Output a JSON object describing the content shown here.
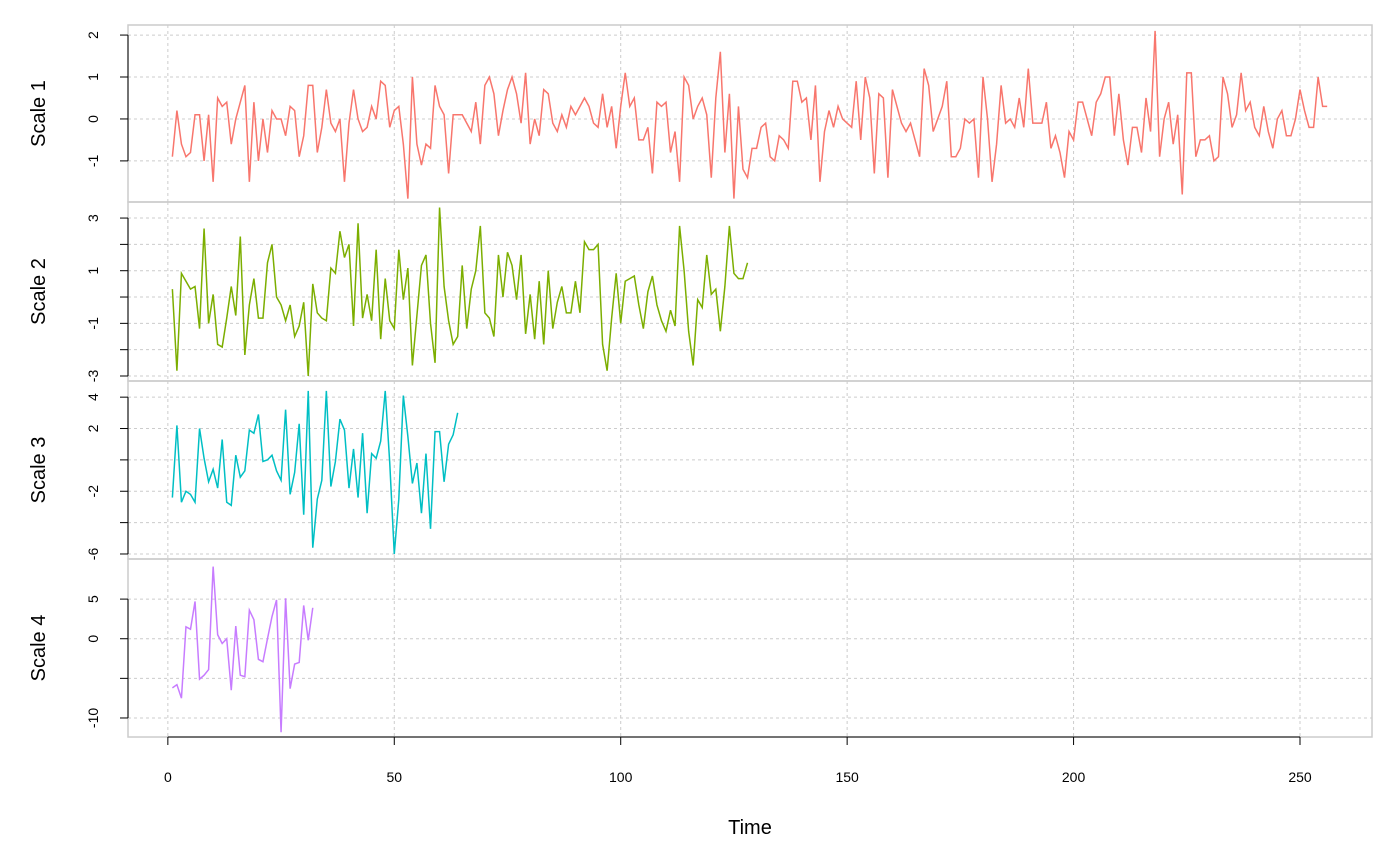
{
  "chart_data": [
    {
      "type": "line",
      "ylabel": "Scale 1",
      "xlim": [
        -8.8,
        265.9
      ],
      "ylim": [
        -1.98,
        2.24
      ],
      "yticks": [
        -1,
        0,
        1,
        2
      ],
      "grid": true,
      "x": [
        1,
        2,
        3,
        4,
        5,
        6,
        7,
        8,
        9,
        10,
        11,
        12,
        13,
        14,
        15,
        16,
        17,
        18,
        19,
        20,
        21,
        22,
        23,
        24,
        25,
        26,
        27,
        28,
        29,
        30,
        31,
        32,
        33,
        34,
        35,
        36,
        37,
        38,
        39,
        40,
        41,
        42,
        43,
        44,
        45,
        46,
        47,
        48,
        49,
        50,
        51,
        52,
        53,
        54,
        55,
        56,
        57,
        58,
        59,
        60,
        61,
        62,
        63,
        64,
        65,
        66,
        67,
        68,
        69,
        70,
        71,
        72,
        73,
        74,
        75,
        76,
        77,
        78,
        79,
        80,
        81,
        82,
        83,
        84,
        85,
        86,
        87,
        88,
        89,
        90,
        91,
        92,
        93,
        94,
        95,
        96,
        97,
        98,
        99,
        100,
        101,
        102,
        103,
        104,
        105,
        106,
        107,
        108,
        109,
        110,
        111,
        112,
        113,
        114,
        115,
        116,
        117,
        118,
        119,
        120,
        121,
        122,
        123,
        124,
        125,
        126,
        127,
        128,
        129,
        130,
        131,
        132,
        133,
        134,
        135,
        136,
        137,
        138,
        139,
        140,
        141,
        142,
        143,
        144,
        145,
        146,
        147,
        148,
        149,
        150,
        151,
        152,
        153,
        154,
        155,
        156,
        157,
        158,
        159,
        160,
        161,
        162,
        163,
        164,
        165,
        166,
        167,
        168,
        169,
        170,
        171,
        172,
        173,
        174,
        175,
        176,
        177,
        178,
        179,
        180,
        181,
        182,
        183,
        184,
        185,
        186,
        187,
        188,
        189,
        190,
        191,
        192,
        193,
        194,
        195,
        196,
        197,
        198,
        199,
        200,
        201,
        202,
        203,
        204,
        205,
        206,
        207,
        208,
        209,
        210,
        211,
        212,
        213,
        214,
        215,
        216,
        217,
        218,
        219,
        220,
        221,
        222,
        223,
        224,
        225,
        226,
        227,
        228,
        229,
        230,
        231,
        232,
        233,
        234,
        235,
        236,
        237,
        238,
        239,
        240,
        241,
        242,
        243,
        244,
        245,
        246,
        247,
        248,
        249,
        250,
        251,
        252,
        253,
        254,
        255,
        256
      ],
      "series": [
        {
          "color": "#F8766D",
          "values": [
            -0.9,
            0.2,
            -0.6,
            -0.9,
            -0.8,
            0.1,
            0.1,
            -1.0,
            0.1,
            -1.5,
            0.5,
            0.3,
            0.4,
            -0.6,
            0.0,
            0.4,
            0.8,
            -1.5,
            0.4,
            -1.0,
            0.0,
            -0.8,
            0.2,
            0.0,
            0.0,
            -0.4,
            0.3,
            0.2,
            -0.9,
            -0.4,
            0.8,
            0.8,
            -0.8,
            -0.2,
            0.7,
            -0.1,
            -0.3,
            0.0,
            -1.5,
            -0.1,
            0.7,
            0.0,
            -0.3,
            -0.2,
            0.3,
            0.0,
            0.9,
            0.8,
            -0.2,
            0.2,
            0.3,
            -0.6,
            -1.9,
            1.0,
            -0.6,
            -1.1,
            -0.6,
            -0.7,
            0.8,
            0.3,
            0.1,
            -1.3,
            0.1,
            0.1,
            0.1,
            -0.1,
            -0.3,
            0.4,
            -0.6,
            0.8,
            1.0,
            0.6,
            -0.4,
            0.2,
            0.7,
            1.0,
            0.6,
            -0.1,
            1.1,
            -0.6,
            0.0,
            -0.4,
            0.7,
            0.6,
            -0.1,
            -0.3,
            0.1,
            -0.2,
            0.3,
            0.1,
            0.3,
            0.5,
            0.3,
            -0.1,
            -0.2,
            0.6,
            -0.2,
            0.3,
            -0.7,
            0.3,
            1.1,
            0.3,
            0.5,
            -0.5,
            -0.5,
            -0.2,
            -1.3,
            0.4,
            0.3,
            0.4,
            -0.8,
            -0.3,
            -1.5,
            1.0,
            0.8,
            0.0,
            0.3,
            0.5,
            0.1,
            -1.4,
            0.5,
            1.6,
            -0.8,
            0.6,
            -1.9,
            0.3,
            -1.2,
            -1.4,
            -0.7,
            -0.7,
            -0.2,
            -0.1,
            -0.9,
            -1.0,
            -0.4,
            -0.5,
            -0.7,
            0.9,
            0.9,
            0.4,
            0.5,
            -0.5,
            0.8,
            -1.5,
            -0.3,
            0.2,
            -0.2,
            0.3,
            0.0,
            -0.1,
            -0.2,
            0.9,
            -0.5,
            1.0,
            0.5,
            -1.3,
            0.6,
            0.5,
            -1.4,
            0.7,
            0.3,
            -0.1,
            -0.3,
            -0.1,
            -0.5,
            -0.9,
            1.2,
            0.8,
            -0.3,
            0.0,
            0.3,
            0.9,
            -0.9,
            -0.9,
            -0.7,
            0.0,
            -0.1,
            0.0,
            -1.4,
            1.0,
            0.0,
            -1.5,
            -0.6,
            0.8,
            -0.1,
            0.0,
            -0.2,
            0.5,
            -0.2,
            1.2,
            -0.1,
            -0.1,
            -0.1,
            0.4,
            -0.7,
            -0.4,
            -0.8,
            -1.4,
            -0.3,
            -0.5,
            0.4,
            0.4,
            0.0,
            -0.4,
            0.4,
            0.6,
            1.0,
            1.0,
            -0.4,
            0.6,
            -0.5,
            -1.1,
            -0.2,
            -0.2,
            -0.8,
            0.5,
            -0.3,
            2.1,
            -0.9,
            0.0,
            0.4,
            -0.6,
            0.1,
            -1.8,
            1.1,
            1.1,
            -0.9,
            -0.5,
            -0.5,
            -0.4,
            -1.0,
            -0.9,
            1.0,
            0.6,
            -0.2,
            0.1,
            1.1,
            0.2,
            0.4,
            -0.2,
            -0.4,
            0.3,
            -0.3,
            -0.7,
            0.0,
            0.2,
            -0.4,
            -0.4,
            0.0,
            0.7,
            0.2,
            -0.2,
            -0.2,
            1.0,
            0.3,
            0.3
          ]
        }
      ]
    },
    {
      "type": "line",
      "ylabel": "Scale 2",
      "xlim": [
        -8.8,
        265.9
      ],
      "ylim": [
        -3.19,
        3.61
      ],
      "yticks": [
        -3,
        -1,
        1,
        3
      ],
      "minor_yticks": [
        -2,
        0,
        2
      ],
      "grid": true,
      "x": [
        1,
        2,
        3,
        4,
        5,
        6,
        7,
        8,
        9,
        10,
        11,
        12,
        13,
        14,
        15,
        16,
        17,
        18,
        19,
        20,
        21,
        22,
        23,
        24,
        25,
        26,
        27,
        28,
        29,
        30,
        31,
        32,
        33,
        34,
        35,
        36,
        37,
        38,
        39,
        40,
        41,
        42,
        43,
        44,
        45,
        46,
        47,
        48,
        49,
        50,
        51,
        52,
        53,
        54,
        55,
        56,
        57,
        58,
        59,
        60,
        61,
        62,
        63,
        64,
        65,
        66,
        67,
        68,
        69,
        70,
        71,
        72,
        73,
        74,
        75,
        76,
        77,
        78,
        79,
        80,
        81,
        82,
        83,
        84,
        85,
        86,
        87,
        88,
        89,
        90,
        91,
        92,
        93,
        94,
        95,
        96,
        97,
        98,
        99,
        100,
        101,
        102,
        103,
        104,
        105,
        106,
        107,
        108,
        109,
        110,
        111,
        112,
        113,
        114,
        115,
        116,
        117,
        118,
        119,
        120,
        121,
        122,
        123,
        124,
        125,
        126,
        127,
        128
      ],
      "series": [
        {
          "color": "#7CAE00",
          "values": [
            0.3,
            -2.8,
            0.9,
            0.6,
            0.3,
            0.4,
            -1.2,
            2.6,
            -1.0,
            0.1,
            -1.8,
            -1.9,
            -0.8,
            0.4,
            -0.7,
            2.3,
            -2.2,
            -0.3,
            0.7,
            -0.8,
            -0.8,
            1.3,
            2.0,
            0.0,
            -0.3,
            -0.9,
            -0.3,
            -1.5,
            -1.1,
            -0.2,
            -3.0,
            0.5,
            -0.6,
            -0.8,
            -0.9,
            1.1,
            0.9,
            2.5,
            1.5,
            2.0,
            -1.1,
            2.8,
            -0.8,
            0.1,
            -0.9,
            1.8,
            -1.6,
            0.7,
            -0.9,
            -1.2,
            1.8,
            -0.1,
            1.1,
            -2.6,
            -0.7,
            1.2,
            1.6,
            -1.0,
            -2.5,
            3.4,
            0.4,
            -0.9,
            -1.8,
            -1.5,
            1.2,
            -1.2,
            0.3,
            1.0,
            2.7,
            -0.6,
            -0.8,
            -1.5,
            1.6,
            0.0,
            1.7,
            1.2,
            -0.1,
            1.6,
            -1.4,
            0.1,
            -1.6,
            0.6,
            -1.8,
            1.0,
            -1.2,
            -0.2,
            0.4,
            -0.6,
            -0.6,
            0.6,
            -0.6,
            2.1,
            1.8,
            1.8,
            2.0,
            -1.8,
            -2.8,
            -0.8,
            0.9,
            -1.0,
            0.6,
            0.7,
            0.8,
            -0.3,
            -1.2,
            0.2,
            0.8,
            -0.3,
            -0.9,
            -1.3,
            -0.5,
            -1.1,
            2.7,
            1.0,
            -1.3,
            -2.6,
            -0.1,
            -0.4,
            1.6,
            0.1,
            0.3,
            -1.3,
            0.4,
            2.7,
            0.9,
            0.7,
            0.7,
            1.3
          ]
        }
      ]
    },
    {
      "type": "line",
      "ylabel": "Scale 3",
      "xlim": [
        -8.8,
        265.9
      ],
      "ylim": [
        -6.32,
        5.03
      ],
      "yticks": [
        -6,
        -2,
        2,
        4
      ],
      "minor_yticks": [
        -4,
        0
      ],
      "grid": true,
      "x": [
        1,
        2,
        3,
        4,
        5,
        6,
        7,
        8,
        9,
        10,
        11,
        12,
        13,
        14,
        15,
        16,
        17,
        18,
        19,
        20,
        21,
        22,
        23,
        24,
        25,
        26,
        27,
        28,
        29,
        30,
        31,
        32,
        33,
        34,
        35,
        36,
        37,
        38,
        39,
        40,
        41,
        42,
        43,
        44,
        45,
        46,
        47,
        48,
        49,
        50,
        51,
        52,
        53,
        54,
        55,
        56,
        57,
        58,
        59,
        60,
        61,
        62,
        63,
        64
      ],
      "series": [
        {
          "color": "#00BFC4",
          "values": [
            -2.4,
            2.2,
            -2.7,
            -2.0,
            -2.2,
            -2.7,
            2.0,
            0.1,
            -1.4,
            -0.6,
            -1.8,
            1.3,
            -2.7,
            -2.9,
            0.3,
            -1.1,
            -0.7,
            1.9,
            1.7,
            2.9,
            -0.1,
            0.0,
            0.3,
            -0.7,
            -1.3,
            3.2,
            -2.2,
            -0.8,
            2.3,
            -3.5,
            4.4,
            -5.6,
            -2.5,
            -1.3,
            4.4,
            -1.7,
            -0.1,
            2.6,
            1.9,
            -1.8,
            0.7,
            -2.4,
            1.7,
            -3.4,
            0.4,
            0.1,
            1.2,
            4.4,
            -0.2,
            -6.0,
            -2.5,
            4.1,
            1.5,
            -1.5,
            -0.2,
            -3.4,
            0.4,
            -4.4,
            1.8,
            1.8,
            -1.4,
            1.0,
            1.6,
            3.0
          ]
        }
      ]
    },
    {
      "type": "line",
      "ylabel": "Scale 4",
      "xlabel": "Time",
      "xlim": [
        -8.8,
        265.9
      ],
      "xticks": [
        0,
        50,
        100,
        150,
        200,
        250
      ],
      "ylim": [
        -12.4,
        10.06
      ],
      "yticks": [
        -10,
        0,
        5
      ],
      "minor_yticks": [
        -5
      ],
      "grid": true,
      "x": [
        1,
        2,
        3,
        4,
        5,
        6,
        7,
        8,
        9,
        10,
        11,
        12,
        13,
        14,
        15,
        16,
        17,
        18,
        19,
        20,
        21,
        22,
        23,
        24,
        25,
        26,
        27,
        28,
        29,
        30,
        31,
        32
      ],
      "series": [
        {
          "color": "#C77CFF",
          "values": [
            -6.2,
            -5.8,
            -7.5,
            1.5,
            1.2,
            4.7,
            -5.1,
            -4.6,
            -3.9,
            9.1,
            0.5,
            -0.6,
            0.0,
            -6.5,
            1.6,
            -4.6,
            -4.8,
            3.6,
            2.4,
            -2.6,
            -2.9,
            0.0,
            2.8,
            4.9,
            -11.8,
            5.1,
            -6.3,
            -3.2,
            -3.0,
            4.2,
            -0.2,
            3.9
          ]
        }
      ]
    }
  ]
}
